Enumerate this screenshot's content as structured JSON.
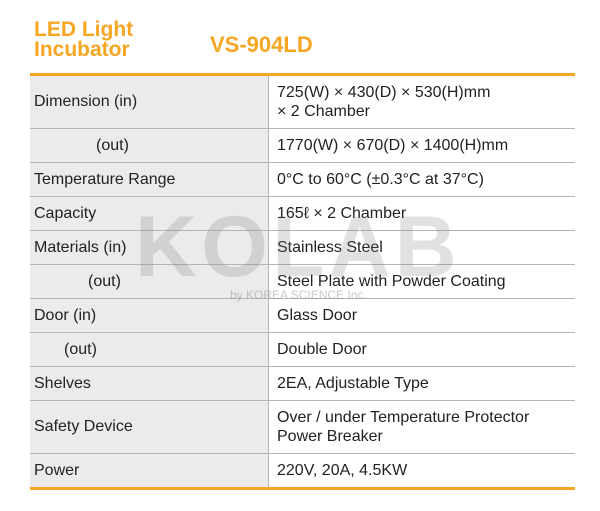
{
  "header": {
    "product_title": "LED Light\nIncubator",
    "model_name": "VS-904LD"
  },
  "watermark": {
    "logo_text": "KOLAB",
    "subtitle": "by KOREA SCIENCE Inc."
  },
  "specs": [
    {
      "label": "Dimension (in)",
      "value": "725(W) × 430(D) × 530(H)mm\n× 2 Chamber"
    },
    {
      "label": "(out)",
      "value": "1770(W) × 670(D) × 1400(H)mm"
    },
    {
      "label": "Temperature Range",
      "value": "0°C to 60°C (±0.3°C at 37°C)"
    },
    {
      "label": "Capacity",
      "value": "165ℓ × 2 Chamber"
    },
    {
      "label": "Materials (in)",
      "value": "Stainless Steel"
    },
    {
      "label": "(out)",
      "value": "Steel Plate with Powder Coating"
    },
    {
      "label": "Door (in)",
      "value": "Glass Door"
    },
    {
      "label": "(out)",
      "value": "Double Door"
    },
    {
      "label": "Shelves",
      "value": "2EA, Adjustable Type"
    },
    {
      "label": "Safety Device",
      "value": "Over / under Temperature Protector\nPower Breaker"
    },
    {
      "label": "Power",
      "value": "220V, 20A, 4.5KW"
    }
  ],
  "colors": {
    "accent": "#f6a623",
    "label_bg": "#ebebeb",
    "border": "#b5b5b5"
  }
}
